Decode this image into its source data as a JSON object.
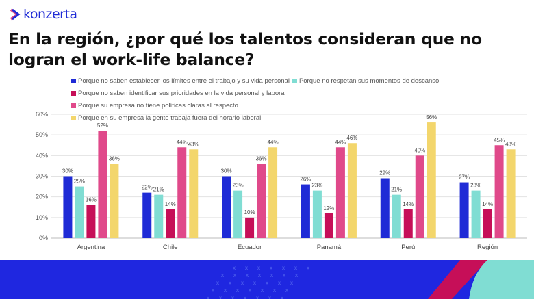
{
  "brand": {
    "name": "konzerta",
    "color": "#1f2bd6"
  },
  "title": "En la región, ¿por qué los talentos consideran que no logran el work-life balance?",
  "chart_data": {
    "type": "bar",
    "categories": [
      "Argentina",
      "Chile",
      "Ecuador",
      "Panamá",
      "Perú",
      "Región"
    ],
    "series": [
      {
        "name": "Porque no saben establecer los límites entre el trabajo y su vida personal",
        "color": "#1f2bd6",
        "values": [
          30,
          22,
          30,
          26,
          29,
          27
        ]
      },
      {
        "name": "Porque no respetan sus momentos de descanso",
        "color": "#80ddd3",
        "values": [
          25,
          21,
          23,
          23,
          21,
          23
        ]
      },
      {
        "name": "Porque no saben identificar sus prioridades en la vida personal y laboral",
        "color": "#c60f58",
        "values": [
          16,
          14,
          10,
          12,
          14,
          14
        ]
      },
      {
        "name": "Porque su empresa no tiene políticas claras al respecto",
        "color": "#e0498a",
        "values": [
          52,
          44,
          36,
          44,
          40,
          45
        ]
      },
      {
        "name": "Porque en su empresa la gente trabaja fuera del horario laboral",
        "color": "#f3d66c",
        "values": [
          36,
          43,
          44,
          46,
          56,
          43
        ]
      }
    ],
    "yticks": [
      "0%",
      "10%",
      "20%",
      "30%",
      "40%",
      "50%",
      "60%"
    ],
    "ylim": [
      0,
      60
    ],
    "grid": true,
    "legend_position": "top",
    "value_suffix": "%"
  }
}
